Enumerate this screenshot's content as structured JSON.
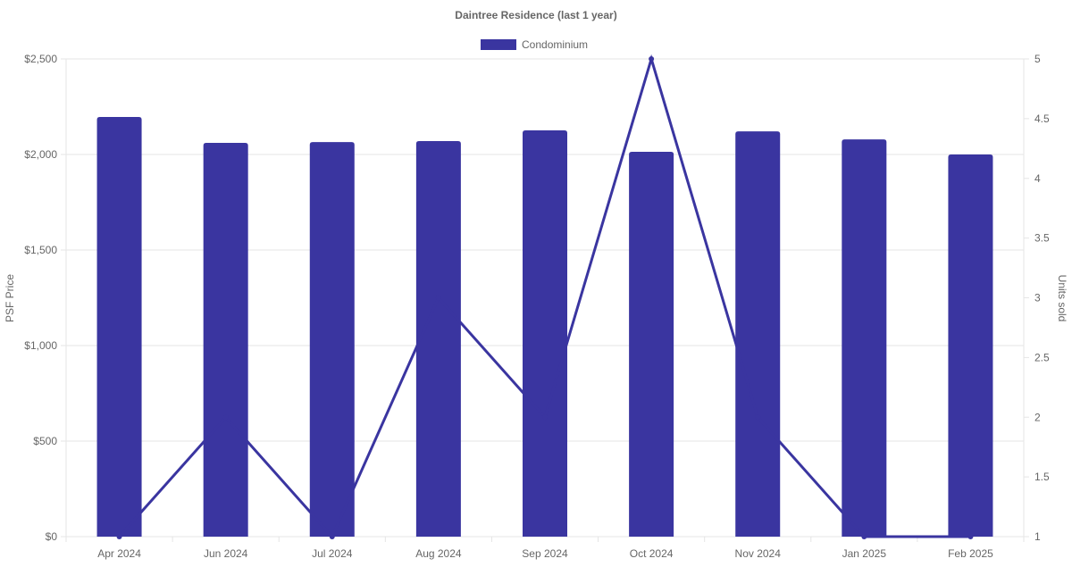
{
  "chart_data": {
    "type": "bar",
    "title": "Daintree Residence (last 1 year)",
    "categories": [
      "Apr 2024",
      "Jun 2024",
      "Jul 2024",
      "Aug 2024",
      "Sep 2024",
      "Oct 2024",
      "Nov 2024",
      "Jan 2025",
      "Feb 2025"
    ],
    "series": [
      {
        "name": "Condominium",
        "type": "bar",
        "axis": "left",
        "values": [
          2196,
          2061,
          2065,
          2070,
          2126,
          2014,
          2121,
          2079,
          2000
        ]
      },
      {
        "type": "line",
        "axis": "right",
        "values": [
          1,
          2,
          1,
          3,
          2,
          5,
          2,
          1,
          1
        ]
      }
    ],
    "ylabel": "PSF Price",
    "y2label": "Units sold",
    "ylim": [
      0,
      2500
    ],
    "y2lim": [
      1,
      5
    ],
    "yticks": [
      "$0",
      "$500",
      "$1,000",
      "$1,500",
      "$2,000",
      "$2,500"
    ],
    "y2ticks": [
      "1",
      "1.5",
      "2",
      "2.5",
      "3",
      "3.5",
      "4",
      "4.5",
      "5"
    ],
    "grid": true,
    "legend": "top",
    "colors": {
      "bar": "#3a35a0",
      "line": "#3a35a0",
      "grid": "#e5e5e5",
      "text": "#666666"
    }
  }
}
